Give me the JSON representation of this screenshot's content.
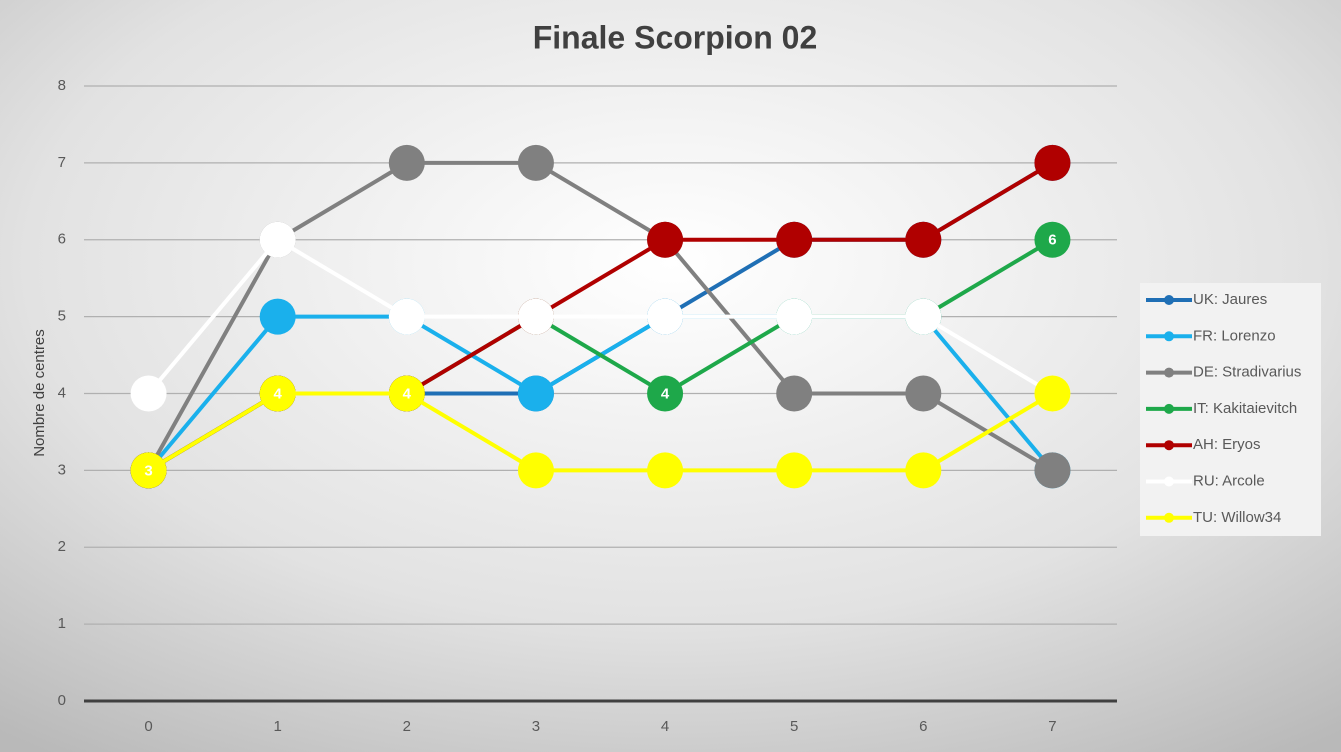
{
  "chart_data": {
    "type": "line",
    "title": "Finale Scorpion 02",
    "y_label": "Nombre de centres",
    "x": [
      0,
      1,
      2,
      3,
      4,
      5,
      6,
      7
    ],
    "xlim": [
      -0.5,
      7.5
    ],
    "xticks": [
      0,
      1,
      2,
      3,
      4,
      5,
      6,
      7
    ],
    "ylim": [
      0,
      8
    ],
    "yticks": [
      0,
      1,
      2,
      3,
      4,
      5,
      6,
      7,
      8
    ],
    "grid": true,
    "legend": "right",
    "series": [
      {
        "name": "UK: Jaures",
        "color": "#1f6fb5",
        "values": [
          3,
          4,
          4,
          4,
          5,
          6,
          6,
          7
        ]
      },
      {
        "name": "FR: Lorenzo",
        "color": "#1ab0ec",
        "values": [
          3,
          5,
          5,
          4,
          5,
          5,
          5,
          3
        ]
      },
      {
        "name": "DE: Stradivarius",
        "color": "#808080",
        "values": [
          3,
          6,
          7,
          7,
          6,
          4,
          4,
          3
        ]
      },
      {
        "name": "IT: Kakitaievitch",
        "color": "#1ea84a",
        "values": [
          3,
          4,
          4,
          5,
          4,
          5,
          5,
          6
        ],
        "show_labels": [
          false,
          false,
          false,
          false,
          true,
          false,
          false,
          true
        ]
      },
      {
        "name": "AH: Eryos",
        "color": "#b00000",
        "values": [
          3,
          4,
          4,
          5,
          6,
          6,
          6,
          7
        ]
      },
      {
        "name": "RU: Arcole",
        "color": "#ffffff",
        "values": [
          4,
          6,
          5,
          5,
          5,
          5,
          5,
          4
        ]
      },
      {
        "name": "TU: Willow34",
        "color": "#ffff00",
        "values": [
          3,
          4,
          4,
          3,
          3,
          3,
          3,
          4
        ],
        "show_labels": [
          true,
          true,
          true,
          false,
          false,
          false,
          false,
          false
        ]
      }
    ]
  }
}
